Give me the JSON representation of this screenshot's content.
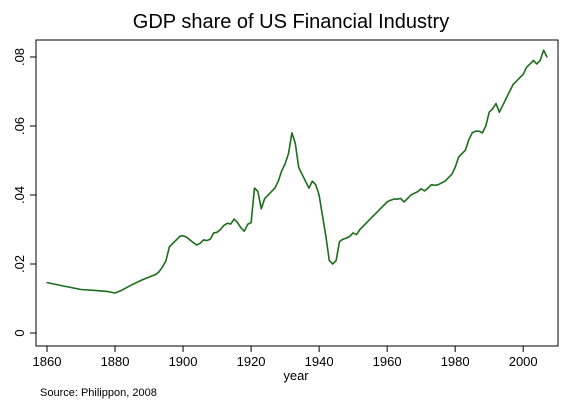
{
  "chart_data": {
    "type": "line",
    "title": "GDP share of US Financial Industry",
    "xlabel": "year",
    "ylabel": "",
    "source": "Source: Philippon, 2008",
    "xlim": [
      1860,
      2007
    ],
    "ylim": [
      0,
      0.08
    ],
    "x_ticks": [
      1860,
      1880,
      1900,
      1920,
      1940,
      1960,
      1980,
      2000
    ],
    "y_ticks": [
      0,
      0.02,
      0.04,
      0.06,
      0.08
    ],
    "y_tick_labels": [
      "0",
      ".02",
      ".04",
      ".06",
      ".08"
    ],
    "grid": false,
    "series": [
      {
        "color": "#1b6e1b",
        "x": [
          1860,
          1862,
          1865,
          1868,
          1870,
          1873,
          1876,
          1878,
          1880,
          1882,
          1885,
          1888,
          1890,
          1892,
          1893,
          1894,
          1895,
          1896,
          1897,
          1898,
          1899,
          1900,
          1901,
          1902,
          1903,
          1904,
          1905,
          1906,
          1907,
          1908,
          1909,
          1910,
          1911,
          1912,
          1913,
          1914,
          1915,
          1916,
          1917,
          1918,
          1919,
          1920,
          1921,
          1922,
          1923,
          1924,
          1925,
          1926,
          1927,
          1928,
          1929,
          1930,
          1931,
          1932,
          1933,
          1934,
          1935,
          1936,
          1937,
          1938,
          1939,
          1940,
          1941,
          1942,
          1943,
          1944,
          1945,
          1946,
          1947,
          1948,
          1949,
          1950,
          1951,
          1952,
          1953,
          1954,
          1955,
          1956,
          1957,
          1958,
          1959,
          1960,
          1961,
          1962,
          1963,
          1964,
          1965,
          1966,
          1967,
          1968,
          1969,
          1970,
          1971,
          1972,
          1973,
          1974,
          1975,
          1976,
          1977,
          1978,
          1979,
          1980,
          1981,
          1982,
          1983,
          1984,
          1985,
          1986,
          1987,
          1988,
          1989,
          1990,
          1991,
          1992,
          1993,
          1994,
          1995,
          1996,
          1997,
          1998,
          1999,
          2000,
          2001,
          2002,
          2003,
          2004,
          2005,
          2006,
          2007
        ],
        "values": [
          0.0146,
          0.0142,
          0.0136,
          0.013,
          0.0126,
          0.0124,
          0.0122,
          0.012,
          0.0116,
          0.0124,
          0.014,
          0.0154,
          0.0162,
          0.017,
          0.0178,
          0.0192,
          0.021,
          0.025,
          0.026,
          0.027,
          0.028,
          0.0282,
          0.0278,
          0.027,
          0.0262,
          0.0255,
          0.026,
          0.027,
          0.0268,
          0.0272,
          0.029,
          0.0292,
          0.03,
          0.0312,
          0.0318,
          0.0316,
          0.033,
          0.032,
          0.0305,
          0.0295,
          0.0315,
          0.032,
          0.042,
          0.041,
          0.036,
          0.039,
          0.04,
          0.041,
          0.042,
          0.044,
          0.047,
          0.049,
          0.052,
          0.058,
          0.055,
          0.048,
          0.046,
          0.044,
          0.042,
          0.044,
          0.043,
          0.04,
          0.034,
          0.028,
          0.021,
          0.02,
          0.021,
          0.0265,
          0.0272,
          0.0275,
          0.028,
          0.029,
          0.0285,
          0.03,
          0.031,
          0.032,
          0.033,
          0.034,
          0.035,
          0.036,
          0.037,
          0.038,
          0.0385,
          0.0388,
          0.0388,
          0.039,
          0.038,
          0.039,
          0.04,
          0.0405,
          0.041,
          0.0418,
          0.0412,
          0.042,
          0.043,
          0.0428,
          0.043,
          0.0435,
          0.044,
          0.045,
          0.046,
          0.048,
          0.051,
          0.052,
          0.053,
          0.056,
          0.058,
          0.0585,
          0.0585,
          0.058,
          0.06,
          0.064,
          0.065,
          0.0665,
          0.064,
          0.066,
          0.068,
          0.07,
          0.072,
          0.073,
          0.074,
          0.075,
          0.077,
          0.078,
          0.079,
          0.078,
          0.079,
          0.082,
          0.08
        ]
      }
    ]
  }
}
